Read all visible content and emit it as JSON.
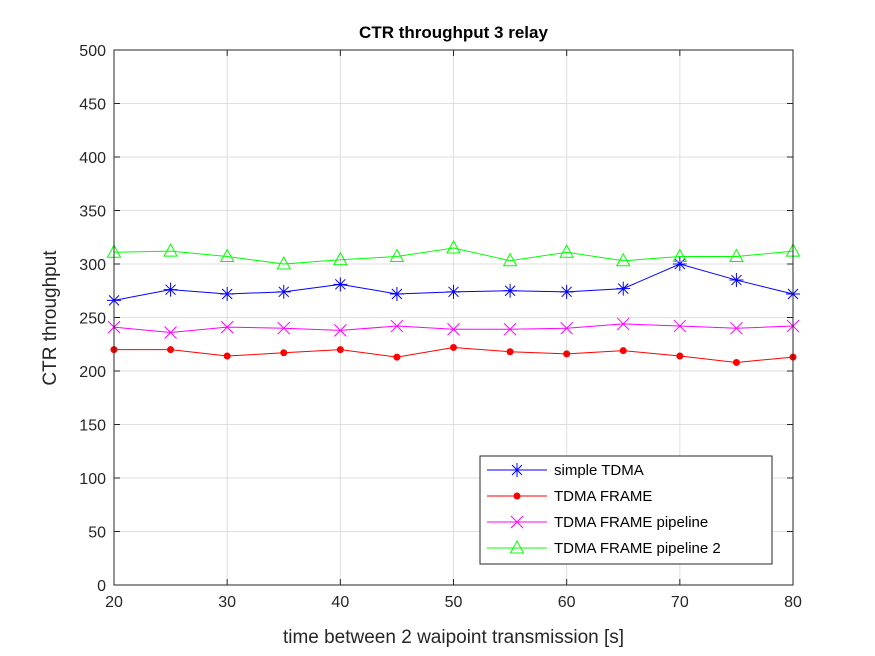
{
  "chart_data": {
    "type": "line",
    "title": "CTR throughput 3 relay",
    "xlabel": "time between 2 waipoint transmission [s]",
    "ylabel": "CTR throughput",
    "xlim": [
      20,
      80
    ],
    "ylim": [
      0,
      500
    ],
    "xticks": [
      "20",
      "30",
      "40",
      "50",
      "60",
      "70",
      "80"
    ],
    "yticks": [
      "0",
      "50",
      "100",
      "150",
      "200",
      "250",
      "300",
      "350",
      "400",
      "450",
      "500"
    ],
    "grid": true,
    "legend_position": "bottom-right",
    "x": [
      20,
      25,
      30,
      35,
      40,
      45,
      50,
      55,
      60,
      65,
      70,
      75,
      80
    ],
    "series": [
      {
        "name": "simple TDMA",
        "color": "#0000ff",
        "marker": "asterisk",
        "values": [
          266,
          276,
          272,
          274,
          281,
          272,
          274,
          275,
          274,
          277,
          300,
          285,
          272
        ]
      },
      {
        "name": "TDMA FRAME",
        "color": "#ff0000",
        "marker": "dot",
        "values": [
          220,
          220,
          214,
          217,
          220,
          213,
          222,
          218,
          216,
          219,
          214,
          208,
          213
        ]
      },
      {
        "name": "TDMA FRAME pipeline",
        "color": "#ff00ff",
        "marker": "x",
        "values": [
          241,
          236,
          241,
          240,
          238,
          242,
          239,
          239,
          240,
          244,
          242,
          240,
          242
        ]
      },
      {
        "name": "TDMA FRAME pipeline 2",
        "color": "#00ff00",
        "marker": "triangle",
        "values": [
          311,
          312,
          307,
          300,
          304,
          307,
          315,
          303,
          311,
          303,
          307,
          307,
          312
        ]
      }
    ]
  }
}
